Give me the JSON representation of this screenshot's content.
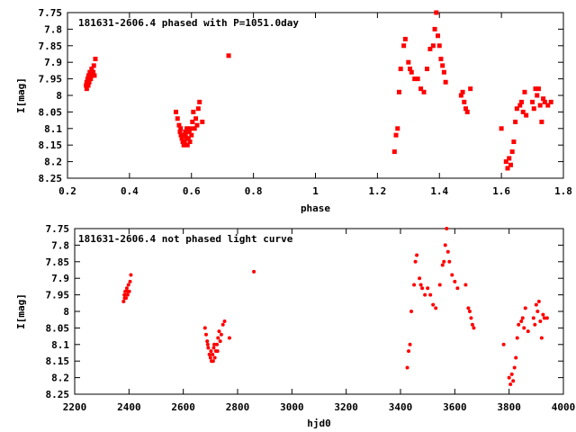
{
  "chart_data": [
    {
      "type": "scatter",
      "title": "181631-2606.4 phased with P=1051.0day",
      "xlabel": "phase",
      "ylabel": "I[mag]",
      "xlim": [
        0.2,
        1.8
      ],
      "ylim": [
        8.25,
        7.75
      ],
      "x_ticks": [
        "0.2",
        "0.4",
        "0.6",
        "0.8",
        "1",
        "1.2",
        "1.4",
        "1.6",
        "1.8"
      ],
      "y_ticks": [
        "7.75",
        "7.8",
        "7.85",
        "7.9",
        "7.95",
        "8",
        "8.05",
        "8.1",
        "8.15",
        "8.2",
        "8.25"
      ],
      "grid": false,
      "marker": "filled-square",
      "color": "#ff0000",
      "series": [
        {
          "points": [
            [
              0.26,
              7.97
            ],
            [
              0.262,
              7.98
            ],
            [
              0.265,
              7.95
            ],
            [
              0.268,
              7.94
            ],
            [
              0.27,
              7.96
            ],
            [
              0.272,
              7.93
            ],
            [
              0.275,
              7.95
            ],
            [
              0.278,
              7.92
            ],
            [
              0.28,
              7.94
            ],
            [
              0.283,
              7.93
            ],
            [
              0.285,
              7.91
            ],
            [
              0.287,
              7.94
            ],
            [
              0.29,
              7.89
            ],
            [
              0.262,
              7.96
            ],
            [
              0.267,
              7.97
            ],
            [
              0.55,
              8.05
            ],
            [
              0.555,
              8.07
            ],
            [
              0.56,
              8.09
            ],
            [
              0.563,
              8.11
            ],
            [
              0.566,
              8.12
            ],
            [
              0.569,
              8.13
            ],
            [
              0.572,
              8.14
            ],
            [
              0.575,
              8.15
            ],
            [
              0.578,
              8.14
            ],
            [
              0.581,
              8.12
            ],
            [
              0.584,
              8.13
            ],
            [
              0.587,
              8.15
            ],
            [
              0.59,
              8.13
            ],
            [
              0.593,
              8.11
            ],
            [
              0.596,
              8.1
            ],
            [
              0.6,
              8.12
            ],
            [
              0.603,
              8.08
            ],
            [
              0.606,
              8.05
            ],
            [
              0.61,
              8.1
            ],
            [
              0.614,
              8.07
            ],
            [
              0.618,
              8.09
            ],
            [
              0.622,
              8.04
            ],
            [
              0.626,
              8.02
            ],
            [
              0.635,
              8.08
            ],
            [
              0.565,
              8.1
            ],
            [
              0.575,
              8.12
            ],
            [
              0.585,
              8.1
            ],
            [
              0.595,
              8.14
            ],
            [
              0.58,
              8.11
            ],
            [
              0.72,
              7.88
            ],
            [
              1.255,
              8.17
            ],
            [
              1.26,
              8.12
            ],
            [
              1.265,
              8.1
            ],
            [
              1.27,
              7.99
            ],
            [
              1.275,
              7.92
            ],
            [
              1.285,
              7.85
            ],
            [
              1.29,
              7.83
            ],
            [
              1.3,
              7.9
            ],
            [
              1.305,
              7.92
            ],
            [
              1.31,
              7.93
            ],
            [
              1.32,
              7.95
            ],
            [
              1.33,
              7.95
            ],
            [
              1.34,
              7.98
            ],
            [
              1.35,
              7.99
            ],
            [
              1.36,
              7.92
            ],
            [
              1.37,
              7.86
            ],
            [
              1.38,
              7.85
            ],
            [
              1.385,
              7.8
            ],
            [
              1.39,
              7.75
            ],
            [
              1.395,
              7.82
            ],
            [
              1.4,
              7.85
            ],
            [
              1.405,
              7.89
            ],
            [
              1.41,
              7.91
            ],
            [
              1.415,
              7.93
            ],
            [
              1.42,
              7.96
            ],
            [
              1.47,
              8.0
            ],
            [
              1.475,
              7.99
            ],
            [
              1.48,
              8.02
            ],
            [
              1.485,
              8.04
            ],
            [
              1.49,
              8.05
            ],
            [
              1.5,
              7.98
            ],
            [
              1.6,
              8.1
            ],
            [
              1.615,
              8.2
            ],
            [
              1.62,
              8.22
            ],
            [
              1.625,
              8.19
            ],
            [
              1.63,
              8.21
            ],
            [
              1.635,
              8.17
            ],
            [
              1.64,
              8.14
            ],
            [
              1.645,
              8.08
            ],
            [
              1.65,
              8.04
            ],
            [
              1.66,
              8.03
            ],
            [
              1.665,
              8.02
            ],
            [
              1.67,
              8.05
            ],
            [
              1.675,
              7.99
            ],
            [
              1.68,
              8.06
            ],
            [
              1.7,
              8.02
            ],
            [
              1.705,
              8.04
            ],
            [
              1.71,
              7.98
            ],
            [
              1.715,
              8.0
            ],
            [
              1.72,
              7.98
            ],
            [
              1.725,
              8.03
            ],
            [
              1.73,
              8.08
            ],
            [
              1.735,
              8.01
            ],
            [
              1.74,
              8.02
            ],
            [
              1.75,
              8.03
            ],
            [
              1.76,
              8.02
            ]
          ]
        }
      ]
    },
    {
      "type": "scatter",
      "title": "181631-2606.4 not phased light curve",
      "xlabel": "hjd0",
      "ylabel": "I[mag]",
      "xlim": [
        2200,
        4000
      ],
      "ylim": [
        8.25,
        7.75
      ],
      "x_ticks": [
        "2200",
        "2400",
        "2600",
        "2800",
        "3000",
        "3200",
        "3400",
        "3600",
        "3800",
        "4000"
      ],
      "y_ticks": [
        "7.75",
        "7.8",
        "7.85",
        "7.9",
        "7.95",
        "8",
        "8.05",
        "8.1",
        "8.15",
        "8.2",
        "8.25"
      ],
      "grid": false,
      "marker": "filled-circle",
      "color": "#ff0000",
      "series": [
        {
          "points": [
            [
              2380,
              7.97
            ],
            [
              2383,
              7.95
            ],
            [
              2386,
              7.94
            ],
            [
              2389,
              7.96
            ],
            [
              2392,
              7.93
            ],
            [
              2395,
              7.95
            ],
            [
              2398,
              7.92
            ],
            [
              2401,
              7.94
            ],
            [
              2404,
              7.91
            ],
            [
              2407,
              7.89
            ],
            [
              2384,
              7.96
            ],
            [
              2394,
              7.94
            ],
            [
              2680,
              8.05
            ],
            [
              2684,
              8.07
            ],
            [
              2688,
              8.09
            ],
            [
              2692,
              8.11
            ],
            [
              2696,
              8.13
            ],
            [
              2700,
              8.14
            ],
            [
              2704,
              8.15
            ],
            [
              2708,
              8.13
            ],
            [
              2712,
              8.11
            ],
            [
              2716,
              8.14
            ],
            [
              2720,
              8.12
            ],
            [
              2724,
              8.1
            ],
            [
              2728,
              8.08
            ],
            [
              2732,
              8.06
            ],
            [
              2736,
              8.09
            ],
            [
              2740,
              8.07
            ],
            [
              2746,
              8.04
            ],
            [
              2752,
              8.03
            ],
            [
              2770,
              8.08
            ],
            [
              2702,
              8.12
            ],
            [
              2714,
              8.1
            ],
            [
              2726,
              8.12
            ],
            [
              2690,
              8.1
            ],
            [
              2710,
              8.15
            ],
            [
              2860,
              7.88
            ],
            [
              3425,
              8.17
            ],
            [
              3430,
              8.12
            ],
            [
              3435,
              8.1
            ],
            [
              3440,
              8.0
            ],
            [
              3450,
              7.92
            ],
            [
              3455,
              7.85
            ],
            [
              3460,
              7.83
            ],
            [
              3470,
              7.9
            ],
            [
              3475,
              7.92
            ],
            [
              3480,
              7.93
            ],
            [
              3490,
              7.95
            ],
            [
              3500,
              7.93
            ],
            [
              3510,
              7.95
            ],
            [
              3520,
              7.98
            ],
            [
              3530,
              7.99
            ],
            [
              3545,
              7.92
            ],
            [
              3555,
              7.86
            ],
            [
              3560,
              7.85
            ],
            [
              3565,
              7.8
            ],
            [
              3570,
              7.75
            ],
            [
              3575,
              7.82
            ],
            [
              3580,
              7.85
            ],
            [
              3590,
              7.89
            ],
            [
              3600,
              7.91
            ],
            [
              3610,
              7.93
            ],
            [
              3640,
              7.92
            ],
            [
              3650,
              7.99
            ],
            [
              3655,
              8.0
            ],
            [
              3660,
              8.02
            ],
            [
              3665,
              8.04
            ],
            [
              3670,
              8.05
            ],
            [
              3780,
              8.1
            ],
            [
              3800,
              8.2
            ],
            [
              3805,
              8.22
            ],
            [
              3810,
              8.19
            ],
            [
              3815,
              8.21
            ],
            [
              3820,
              8.17
            ],
            [
              3825,
              8.14
            ],
            [
              3830,
              8.08
            ],
            [
              3835,
              8.04
            ],
            [
              3845,
              8.03
            ],
            [
              3850,
              8.02
            ],
            [
              3855,
              8.05
            ],
            [
              3860,
              7.99
            ],
            [
              3870,
              8.06
            ],
            [
              3890,
              8.02
            ],
            [
              3895,
              8.04
            ],
            [
              3900,
              7.98
            ],
            [
              3905,
              8.0
            ],
            [
              3910,
              7.97
            ],
            [
              3915,
              8.03
            ],
            [
              3920,
              8.08
            ],
            [
              3925,
              8.01
            ],
            [
              3930,
              8.02
            ],
            [
              3940,
              8.02
            ]
          ]
        }
      ]
    }
  ]
}
